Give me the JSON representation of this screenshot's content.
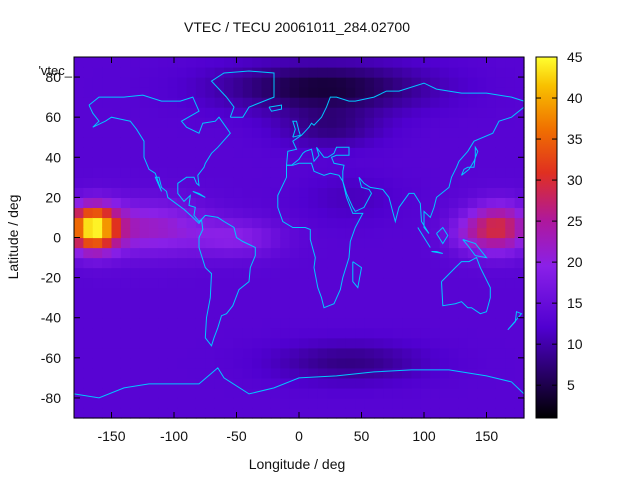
{
  "chart_data": {
    "type": "heatmap",
    "title": "VTEC / TECU 20061011_284.02700",
    "xlabel": "Longitude / deg",
    "ylabel": "Latitude / deg",
    "inset_label": "'vtec_",
    "xlim": [
      -180,
      180
    ],
    "ylim": [
      -90,
      90
    ],
    "x_ticks": [
      -150,
      -100,
      -50,
      0,
      50,
      100,
      150
    ],
    "y_ticks": [
      -80,
      -60,
      -40,
      -20,
      0,
      20,
      40,
      60,
      80
    ],
    "colorbar": {
      "range": [
        1,
        45
      ],
      "ticks": [
        5,
        10,
        15,
        20,
        25,
        30,
        35,
        40,
        45
      ],
      "palette": [
        {
          "v": 0.0,
          "color": "#000000"
        },
        {
          "v": 0.25,
          "color": "#5000d0"
        },
        {
          "v": 0.42,
          "color": "#8a20e8"
        },
        {
          "v": 0.55,
          "color": "#b0189a"
        },
        {
          "v": 0.68,
          "color": "#e03020"
        },
        {
          "v": 0.8,
          "color": "#f07000"
        },
        {
          "v": 0.92,
          "color": "#f8c000"
        },
        {
          "v": 1.0,
          "color": "#ffff30"
        }
      ]
    },
    "colors": {
      "coastline": "#00c8ff",
      "axis": "#000000"
    },
    "field": {
      "background_tecu": 13,
      "features": [
        {
          "lon": -165,
          "lat": 5,
          "slon": 20,
          "slat": 11,
          "amp": 30
        },
        {
          "lon": -120,
          "lat": 5,
          "slon": 45,
          "slat": 13,
          "amp": 9
        },
        {
          "lon": -50,
          "lat": 0,
          "slon": 35,
          "slat": 9,
          "amp": 6
        },
        {
          "lon": 160,
          "lat": 5,
          "slon": 25,
          "slat": 12,
          "amp": 16
        },
        {
          "lon": 135,
          "lat": 2,
          "slon": 20,
          "slat": 9,
          "amp": 4
        },
        {
          "lon": 20,
          "lat": 75,
          "slon": 80,
          "slat": 12,
          "amp": -9
        },
        {
          "lon": 25,
          "lat": 55,
          "slon": 40,
          "slat": 10,
          "amp": -5
        },
        {
          "lon": 40,
          "lat": -62,
          "slon": 60,
          "slat": 10,
          "amp": -5
        },
        {
          "lon": 40,
          "lat": 20,
          "slon": 40,
          "slat": 12,
          "amp": -2
        }
      ]
    },
    "coastlines": [
      [
        [
          -168,
          66
        ],
        [
          -160,
          70
        ],
        [
          -140,
          70
        ],
        [
          -125,
          71
        ],
        [
          -110,
          68
        ],
        [
          -95,
          68
        ],
        [
          -85,
          70
        ],
        [
          -80,
          63
        ],
        [
          -94,
          58
        ],
        [
          -90,
          55
        ],
        [
          -80,
          52
        ],
        [
          -77,
          57
        ],
        [
          -67,
          58
        ],
        [
          -64,
          60
        ],
        [
          -55,
          52
        ],
        [
          -65,
          45
        ],
        [
          -70,
          42
        ],
        [
          -75,
          37
        ],
        [
          -76,
          35
        ],
        [
          -81,
          31
        ],
        [
          -80,
          26
        ],
        [
          -82,
          27
        ],
        [
          -84,
          30
        ],
        [
          -90,
          30
        ],
        [
          -97,
          27
        ],
        [
          -97,
          22
        ],
        [
          -92,
          18
        ],
        [
          -87,
          21
        ],
        [
          -88,
          16
        ],
        [
          -83,
          15
        ],
        [
          -84,
          11
        ],
        [
          -80,
          8
        ],
        [
          -78,
          9
        ],
        [
          -80,
          7
        ],
        [
          -85,
          10
        ],
        [
          -92,
          14
        ],
        [
          -105,
          20
        ],
        [
          -106,
          23
        ],
        [
          -110,
          25
        ],
        [
          -112,
          30
        ],
        [
          -115,
          30
        ],
        [
          -110,
          23
        ],
        [
          -115,
          32
        ],
        [
          -120,
          34
        ],
        [
          -124,
          40
        ],
        [
          -124,
          48
        ],
        [
          -130,
          54
        ],
        [
          -135,
          58
        ],
        [
          -150,
          60
        ],
        [
          -155,
          58
        ],
        [
          -165,
          55
        ],
        [
          -160,
          58
        ],
        [
          -165,
          62
        ],
        [
          -168,
          66
        ]
      ],
      [
        [
          -78,
          9
        ],
        [
          -75,
          11
        ],
        [
          -65,
          10
        ],
        [
          -60,
          8
        ],
        [
          -52,
          5
        ],
        [
          -50,
          0
        ],
        [
          -45,
          -2
        ],
        [
          -35,
          -5
        ],
        [
          -35,
          -9
        ],
        [
          -39,
          -15
        ],
        [
          -40,
          -22
        ],
        [
          -48,
          -26
        ],
        [
          -53,
          -34
        ],
        [
          -58,
          -38
        ],
        [
          -62,
          -39
        ],
        [
          -65,
          -45
        ],
        [
          -68,
          -50
        ],
        [
          -70,
          -54
        ],
        [
          -75,
          -50
        ],
        [
          -74,
          -40
        ],
        [
          -71,
          -30
        ],
        [
          -70,
          -18
        ],
        [
          -75,
          -15
        ],
        [
          -80,
          -5
        ],
        [
          -80,
          0
        ],
        [
          -77,
          4
        ],
        [
          -78,
          9
        ]
      ],
      [
        [
          -55,
          60
        ],
        [
          -45,
          60
        ],
        [
          -40,
          65
        ],
        [
          -20,
          70
        ],
        [
          -20,
          75
        ],
        [
          -20,
          82
        ],
        [
          -40,
          83
        ],
        [
          -60,
          82
        ],
        [
          -70,
          78
        ],
        [
          -58,
          70
        ],
        [
          -52,
          65
        ],
        [
          -55,
          60
        ]
      ],
      [
        [
          -10,
          36
        ],
        [
          -5,
          36
        ],
        [
          0,
          37
        ],
        [
          10,
          37
        ],
        [
          12,
          33
        ],
        [
          20,
          31
        ],
        [
          25,
          32
        ],
        [
          32,
          31
        ],
        [
          35,
          28
        ],
        [
          38,
          20
        ],
        [
          43,
          12
        ],
        [
          51,
          12
        ],
        [
          45,
          5
        ],
        [
          41,
          -2
        ],
        [
          40,
          -10
        ],
        [
          35,
          -20
        ],
        [
          33,
          -26
        ],
        [
          28,
          -33
        ],
        [
          20,
          -35
        ],
        [
          18,
          -30
        ],
        [
          15,
          -25
        ],
        [
          12,
          -15
        ],
        [
          13,
          -10
        ],
        [
          9,
          -1
        ],
        [
          9,
          4
        ],
        [
          5,
          5
        ],
        [
          -5,
          5
        ],
        [
          -13,
          8
        ],
        [
          -17,
          15
        ],
        [
          -17,
          21
        ],
        [
          -10,
          30
        ],
        [
          -10,
          36
        ]
      ],
      [
        [
          -10,
          36
        ],
        [
          -9,
          43
        ],
        [
          -2,
          44
        ],
        [
          -5,
          48
        ],
        [
          2,
          51
        ],
        [
          5,
          53
        ],
        [
          8,
          55
        ],
        [
          10,
          57
        ],
        [
          12,
          56
        ],
        [
          18,
          60
        ],
        [
          22,
          65
        ],
        [
          25,
          70
        ],
        [
          30,
          70
        ],
        [
          40,
          68
        ],
        [
          45,
          68
        ],
        [
          60,
          70
        ],
        [
          70,
          73
        ],
        [
          80,
          73
        ],
        [
          100,
          77
        ],
        [
          110,
          74
        ],
        [
          130,
          72
        ],
        [
          150,
          72
        ],
        [
          170,
          70
        ],
        [
          180,
          68
        ]
      ],
      [
        [
          180,
          65
        ],
        [
          170,
          60
        ],
        [
          160,
          58
        ],
        [
          155,
          52
        ],
        [
          140,
          48
        ],
        [
          135,
          43
        ],
        [
          128,
          38
        ],
        [
          126,
          35
        ],
        [
          122,
          30
        ],
        [
          120,
          25
        ],
        [
          110,
          20
        ],
        [
          108,
          15
        ],
        [
          105,
          10
        ],
        [
          100,
          13
        ],
        [
          100,
          5
        ],
        [
          104,
          2
        ],
        [
          98,
          8
        ],
        [
          97,
          17
        ],
        [
          92,
          22
        ],
        [
          88,
          22
        ],
        [
          80,
          15
        ],
        [
          77,
          8
        ],
        [
          72,
          20
        ],
        [
          67,
          24
        ],
        [
          57,
          25
        ],
        [
          52,
          27
        ],
        [
          48,
          30
        ],
        [
          50,
          25
        ],
        [
          56,
          24
        ],
        [
          58,
          22
        ],
        [
          52,
          15
        ],
        [
          45,
          13
        ],
        [
          43,
          15
        ],
        [
          38,
          22
        ],
        [
          35,
          28
        ],
        [
          35,
          33
        ],
        [
          36,
          36
        ],
        [
          28,
          37
        ],
        [
          26,
          40
        ],
        [
          30,
          41
        ],
        [
          40,
          41
        ],
        [
          40,
          45
        ],
        [
          30,
          45
        ],
        [
          28,
          42
        ],
        [
          23,
          40
        ],
        [
          20,
          40
        ],
        [
          14,
          45
        ],
        [
          16,
          41
        ],
        [
          12,
          38
        ],
        [
          10,
          44
        ],
        [
          5,
          43
        ],
        [
          3,
          42
        ],
        [
          0,
          39
        ],
        [
          -6,
          36
        ],
        [
          -10,
          36
        ]
      ],
      [
        [
          114,
          -22
        ],
        [
          115,
          -34
        ],
        [
          125,
          -33
        ],
        [
          130,
          -32
        ],
        [
          135,
          -35
        ],
        [
          138,
          -35
        ],
        [
          145,
          -38
        ],
        [
          150,
          -37
        ],
        [
          153,
          -30
        ],
        [
          153,
          -25
        ],
        [
          145,
          -15
        ],
        [
          142,
          -10
        ],
        [
          136,
          -12
        ],
        [
          130,
          -12
        ],
        [
          125,
          -15
        ],
        [
          114,
          -22
        ]
      ],
      [
        [
          -180,
          -78
        ],
        [
          -160,
          -80
        ],
        [
          -140,
          -75
        ],
        [
          -120,
          -73
        ],
        [
          -100,
          -73
        ],
        [
          -80,
          -73
        ],
        [
          -65,
          -65
        ],
        [
          -60,
          -70
        ],
        [
          -40,
          -78
        ],
        [
          -20,
          -75
        ],
        [
          0,
          -70
        ],
        [
          30,
          -69
        ],
        [
          60,
          -67
        ],
        [
          90,
          -66
        ],
        [
          120,
          -66
        ],
        [
          150,
          -69
        ],
        [
          170,
          -72
        ],
        [
          180,
          -78
        ]
      ],
      [
        [
          -5,
          50
        ],
        [
          -3,
          54
        ],
        [
          -5,
          58
        ],
        [
          -2,
          58
        ],
        [
          0,
          53
        ],
        [
          1,
          51
        ],
        [
          -5,
          50
        ]
      ],
      [
        [
          130,
          31
        ],
        [
          132,
          34
        ],
        [
          135,
          35
        ],
        [
          140,
          35
        ],
        [
          141,
          40
        ],
        [
          141,
          45
        ],
        [
          143,
          43
        ],
        [
          140,
          38
        ],
        [
          136,
          34
        ],
        [
          130,
          31
        ]
      ],
      [
        [
          95,
          5
        ],
        [
          100,
          0
        ],
        [
          105,
          -5
        ],
        [
          102,
          -2
        ],
        [
          95,
          5
        ]
      ],
      [
        [
          110,
          -7
        ],
        [
          115,
          -8
        ],
        [
          106,
          -7
        ],
        [
          110,
          -7
        ]
      ],
      [
        [
          110,
          2
        ],
        [
          115,
          5
        ],
        [
          119,
          1
        ],
        [
          115,
          -3
        ],
        [
          110,
          2
        ]
      ],
      [
        [
          131,
          -1
        ],
        [
          141,
          -3
        ],
        [
          150,
          -10
        ],
        [
          141,
          -9
        ],
        [
          135,
          -4
        ],
        [
          131,
          -1
        ]
      ],
      [
        [
          43,
          -12
        ],
        [
          50,
          -15
        ],
        [
          47,
          -25
        ],
        [
          43,
          -22
        ],
        [
          43,
          -12
        ]
      ],
      [
        [
          167,
          -46
        ],
        [
          174,
          -41
        ],
        [
          178,
          -38
        ],
        [
          174,
          -37
        ],
        [
          173,
          -42
        ],
        [
          167,
          -46
        ]
      ],
      [
        [
          -85,
          23
        ],
        [
          -75,
          20
        ],
        [
          -80,
          22
        ],
        [
          -85,
          23
        ]
      ],
      [
        [
          -24,
          65
        ],
        [
          -14,
          66
        ],
        [
          -14,
          64
        ],
        [
          -22,
          63
        ],
        [
          -24,
          65
        ]
      ]
    ]
  }
}
